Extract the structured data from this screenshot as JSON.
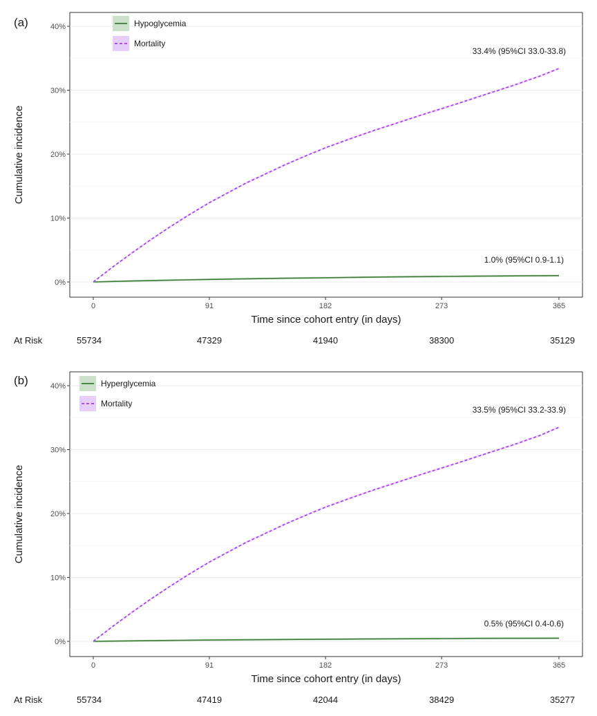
{
  "chart_data": [
    {
      "type": "line",
      "panel_label": "(a)",
      "xlabel": "Time since cohort entry (in days)",
      "ylabel": "Cumulative incidence",
      "x_ticks": [
        0,
        91,
        182,
        273,
        365
      ],
      "y_ticks": [
        0,
        10,
        20,
        30,
        40
      ],
      "y_tick_labels": [
        "0%",
        "10%",
        "20%",
        "30%",
        "40%"
      ],
      "xlim": [
        0,
        365
      ],
      "ylim": [
        0,
        40
      ],
      "grid": true,
      "legend_position": "top-left",
      "series": [
        {
          "name": "Hypoglycemia",
          "color": "#3d7a36",
          "band_color": "#c3dcc0",
          "style": "solid",
          "x": [
            0,
            30,
            60,
            91,
            120,
            150,
            182,
            210,
            240,
            273,
            300,
            330,
            365
          ],
          "y": [
            0,
            0.15,
            0.28,
            0.4,
            0.5,
            0.58,
            0.66,
            0.73,
            0.8,
            0.86,
            0.91,
            0.95,
            1.0
          ],
          "end_label": "1.0% (95%CI 0.9-1.1)"
        },
        {
          "name": "Mortality",
          "color": "#a23be8",
          "band_color": "#e2c6f7",
          "style": "dashed",
          "x": [
            0,
            15,
            30,
            45,
            60,
            75,
            91,
            105,
            120,
            135,
            150,
            165,
            182,
            200,
            220,
            240,
            260,
            273,
            290,
            310,
            330,
            350,
            365
          ],
          "y": [
            0,
            2.3,
            4.5,
            6.6,
            8.6,
            10.5,
            12.4,
            13.9,
            15.5,
            16.9,
            18.3,
            19.6,
            21.0,
            22.3,
            23.7,
            25.0,
            26.3,
            27.1,
            28.2,
            29.5,
            30.8,
            32.2,
            33.4
          ],
          "end_label": "33.4% (95%CI 33.0-33.8)"
        }
      ],
      "at_risk": {
        "title": "At Risk",
        "values": [
          "55734",
          "47329",
          "41940",
          "38300",
          "35129"
        ]
      }
    },
    {
      "type": "line",
      "panel_label": "(b)",
      "xlabel": "Time since cohort entry (in days)",
      "ylabel": "Cumulative incidence",
      "x_ticks": [
        0,
        91,
        182,
        273,
        365
      ],
      "y_ticks": [
        0,
        10,
        20,
        30,
        40
      ],
      "y_tick_labels": [
        "0%",
        "10%",
        "20%",
        "30%",
        "40%"
      ],
      "xlim": [
        0,
        365
      ],
      "ylim": [
        0,
        40
      ],
      "grid": true,
      "legend_position": "top-left",
      "series": [
        {
          "name": "Hyperglycemia",
          "color": "#3d7a36",
          "band_color": "#c3dcc0",
          "style": "solid",
          "x": [
            0,
            30,
            60,
            91,
            120,
            150,
            182,
            210,
            240,
            273,
            300,
            330,
            365
          ],
          "y": [
            0,
            0.08,
            0.14,
            0.2,
            0.25,
            0.29,
            0.33,
            0.37,
            0.4,
            0.43,
            0.46,
            0.48,
            0.5
          ],
          "end_label": "0.5% (95%CI 0.4-0.6)"
        },
        {
          "name": "Mortality",
          "color": "#a23be8",
          "band_color": "#e2c6f7",
          "style": "dashed",
          "x": [
            0,
            15,
            30,
            45,
            60,
            75,
            91,
            105,
            120,
            135,
            150,
            165,
            182,
            200,
            220,
            240,
            260,
            273,
            290,
            310,
            330,
            350,
            365
          ],
          "y": [
            0,
            2.3,
            4.5,
            6.6,
            8.6,
            10.5,
            12.4,
            13.9,
            15.5,
            16.9,
            18.3,
            19.6,
            21.0,
            22.3,
            23.7,
            25.0,
            26.3,
            27.1,
            28.2,
            29.5,
            30.8,
            32.2,
            33.5
          ],
          "end_label": "33.5% (95%CI 33.2-33.9)"
        }
      ],
      "at_risk": {
        "title": "At Risk",
        "values": [
          "55734",
          "47419",
          "42044",
          "38429",
          "35277"
        ]
      }
    }
  ]
}
